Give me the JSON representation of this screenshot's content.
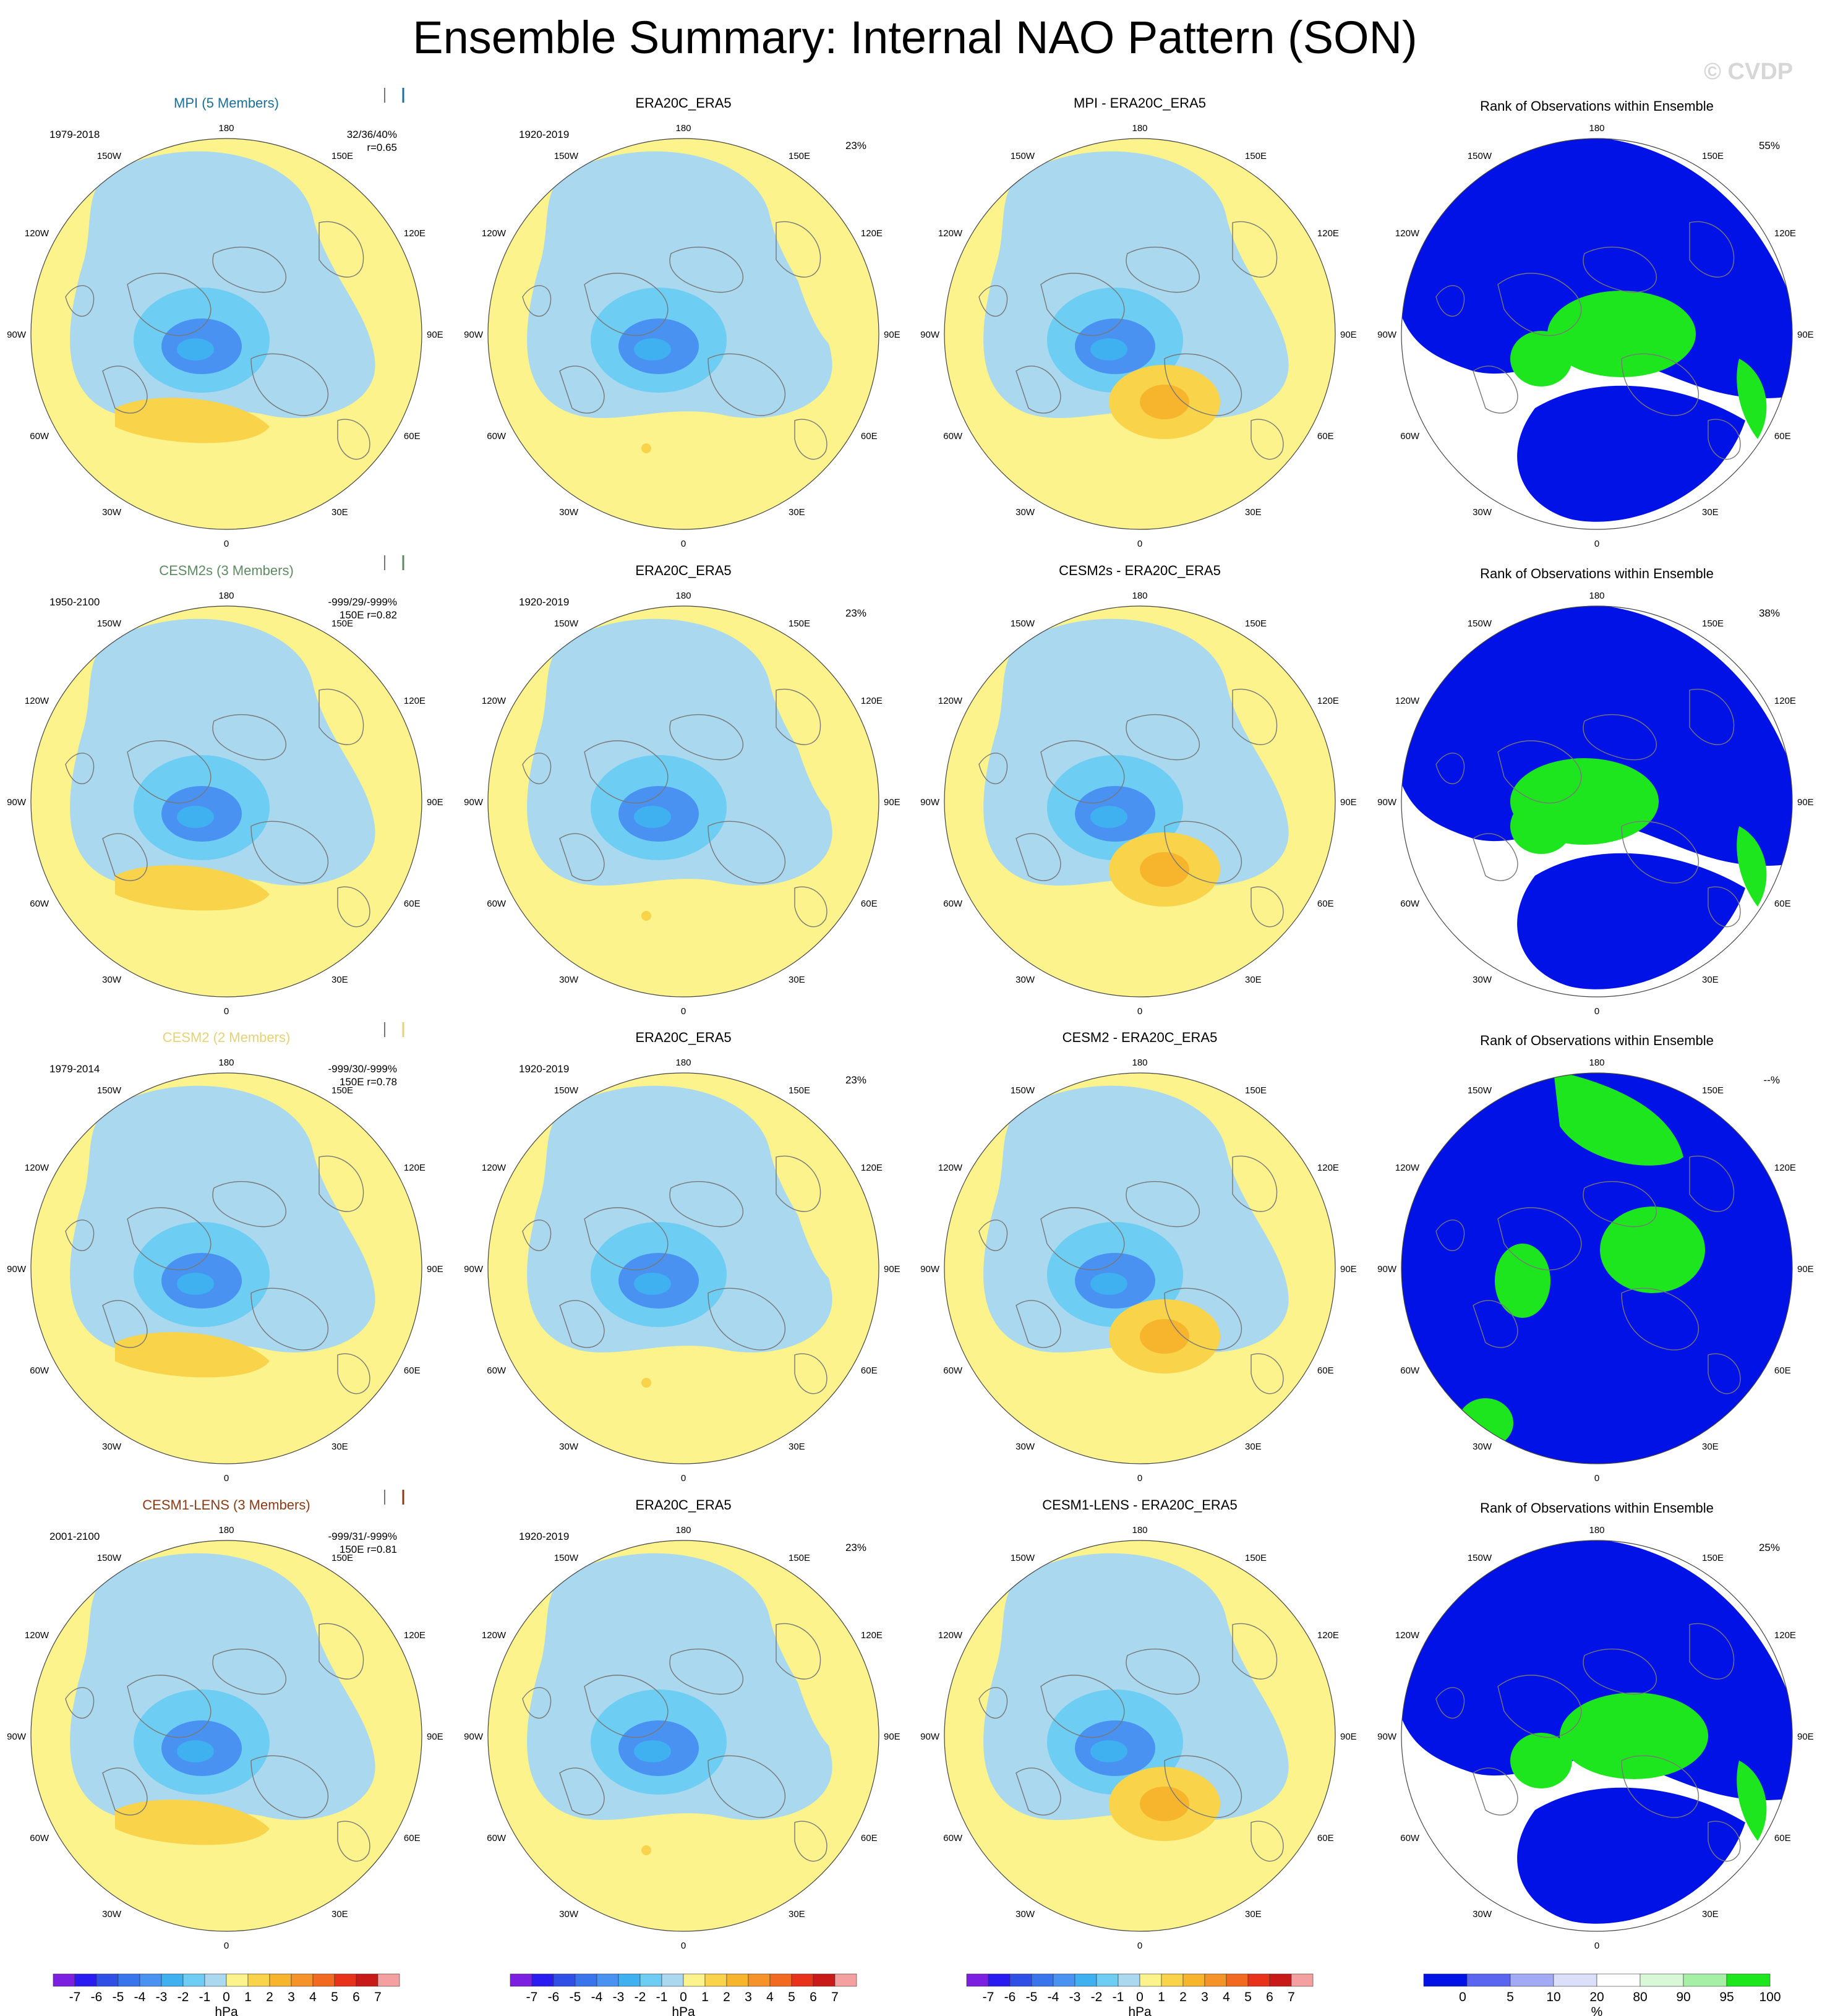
{
  "figure": {
    "title": "Ensemble Summary: Internal NAO Pattern (SON)",
    "watermark": "© CVDP"
  },
  "colors": {
    "ocean_pos": "#fcf38c",
    "ocean_neg": "#a9d8ef",
    "model_mpi": "#1b6f99",
    "model_cesm2s": "#5e8a62",
    "model_cesm2": "#e4d278",
    "model_cesm1": "#8a3a14",
    "rank_blue": "#0012e6",
    "rank_green": "#1ee61e"
  },
  "map_labels": {
    "lon_top": "180",
    "lon_150w": "150W",
    "lon_150e": "150E",
    "lon_120w": "120W",
    "lon_120e": "120E",
    "lon_90w": "90W",
    "lon_90e": "90E",
    "lon_60w": "60W",
    "lon_60e": "60E",
    "lon_30w": "30W",
    "lon_30e": "30E",
    "lon_bottom": "0"
  },
  "rows": [
    {
      "model_title": "MPI (5 Members)",
      "model_color": "#1b6f99",
      "model_years": "1979-2018",
      "stats_line1": "32/36/40%",
      "stats_line2": "r=0.65",
      "obs_title": "ERA20C_ERA5",
      "obs_years": "1920-2019",
      "obs_pct": "23%",
      "diff_title": "MPI - ERA20C_ERA5",
      "rank_title": "Rank of Observations within Ensemble",
      "rank_pct": "55%"
    },
    {
      "model_title": "CESM2s (3 Members)",
      "model_color": "#5e8a62",
      "model_years": "1950-2100",
      "stats_line1": "-999/29/-999%",
      "stats_line2": "150E r=0.82",
      "obs_title": "ERA20C_ERA5",
      "obs_years": "1920-2019",
      "obs_pct": "23%",
      "diff_title": "CESM2s - ERA20C_ERA5",
      "rank_title": "Rank of Observations within Ensemble",
      "rank_pct": "38%"
    },
    {
      "model_title": "CESM2 (2 Members)",
      "model_color": "#e4d278",
      "model_years": "1979-2014",
      "stats_line1": "-999/30/-999%",
      "stats_line2": "150E r=0.78",
      "obs_title": "ERA20C_ERA5",
      "obs_years": "1920-2019",
      "obs_pct": "23%",
      "diff_title": "CESM2 - ERA20C_ERA5",
      "rank_title": "Rank of Observations within Ensemble",
      "rank_pct": "--%"
    },
    {
      "model_title": "CESM1-LENS (3 Members)",
      "model_color": "#8a3a14",
      "model_years": "2001-2100",
      "stats_line1": "-999/31/-999%",
      "stats_line2": "150E r=0.81",
      "obs_title": "ERA20C_ERA5",
      "obs_years": "1920-2019",
      "obs_pct": "23%",
      "diff_title": "CESM1-LENS - ERA20C_ERA5",
      "rank_title": "Rank of Observations within Ensemble",
      "rank_pct": "25%"
    }
  ],
  "chart_data": {
    "type": "heatmap",
    "panel_layout": "4 rows x 4 columns of north-polar stereographic maps",
    "columns": [
      "model ensemble NAO pattern",
      "observed NAO pattern",
      "model minus observations",
      "rank of observations within ensemble"
    ],
    "hpa_colorbar": {
      "unit": "hPa",
      "tick_labels": [
        "-7",
        "-6",
        "-5",
        "-4",
        "-3",
        "-2",
        "-1",
        "0",
        "1",
        "2",
        "3",
        "4",
        "5",
        "6",
        "7"
      ],
      "colors": [
        "#7b1fe0",
        "#2a1cf0",
        "#2f4fe6",
        "#3a74ec",
        "#4a92f2",
        "#3fb0f0",
        "#6ecdf2",
        "#a9d8ef",
        "#fcf38c",
        "#f9d34a",
        "#f7b52e",
        "#f5932a",
        "#f26a22",
        "#e8321a",
        "#c91a1a",
        "#f5a0a0"
      ]
    },
    "rank_colorbar": {
      "unit": "%",
      "tick_labels": [
        "0",
        "5",
        "10",
        "20",
        "80",
        "90",
        "95",
        "100"
      ],
      "colors": [
        "#0012e6",
        "#5a66f0",
        "#a3aaf5",
        "#dcdff9",
        "#ffffff",
        "#d8f8d8",
        "#a6f0a6",
        "#1ee61e"
      ]
    },
    "panels": [
      {
        "row": 0,
        "col": 0,
        "title": "MPI (5 Members)",
        "years": "1979-2018",
        "pattern": "negative Arctic-Iceland center (to about -5 hPa), positive Atlantic band (about +1 to +2 hPa)"
      },
      {
        "row": 0,
        "col": 1,
        "title": "ERA20C_ERA5",
        "years": "1920-2019",
        "explained_variance": "23%"
      },
      {
        "row": 0,
        "col": 2,
        "title": "MPI - ERA20C_ERA5",
        "pattern": "positive over Europe (to about +3 hPa)"
      },
      {
        "row": 0,
        "col": 3,
        "title": "Rank of Observations within Ensemble",
        "percent_label": "55%"
      },
      {
        "row": 1,
        "col": 0,
        "title": "CESM2s (3 Members)",
        "years": "1950-2100"
      },
      {
        "row": 1,
        "col": 1,
        "title": "ERA20C_ERA5",
        "years": "1920-2019",
        "explained_variance": "23%"
      },
      {
        "row": 1,
        "col": 2,
        "title": "CESM2s - ERA20C_ERA5"
      },
      {
        "row": 1,
        "col": 3,
        "title": "Rank of Observations within Ensemble",
        "percent_label": "38%"
      },
      {
        "row": 2,
        "col": 0,
        "title": "CESM2 (2 Members)",
        "years": "1979-2014"
      },
      {
        "row": 2,
        "col": 1,
        "title": "ERA20C_ERA5",
        "years": "1920-2019",
        "explained_variance": "23%"
      },
      {
        "row": 2,
        "col": 2,
        "title": "CESM2 - ERA20C_ERA5"
      },
      {
        "row": 2,
        "col": 3,
        "title": "Rank of Observations within Ensemble",
        "percent_label": "--%"
      },
      {
        "row": 3,
        "col": 0,
        "title": "CESM1-LENS (3 Members)",
        "years": "2001-2100"
      },
      {
        "row": 3,
        "col": 1,
        "title": "ERA20C_ERA5",
        "years": "1920-2019",
        "explained_variance": "23%"
      },
      {
        "row": 3,
        "col": 2,
        "title": "CESM1-LENS - ERA20C_ERA5"
      },
      {
        "row": 3,
        "col": 3,
        "title": "Rank of Observations within Ensemble",
        "percent_label": "25%"
      }
    ]
  }
}
